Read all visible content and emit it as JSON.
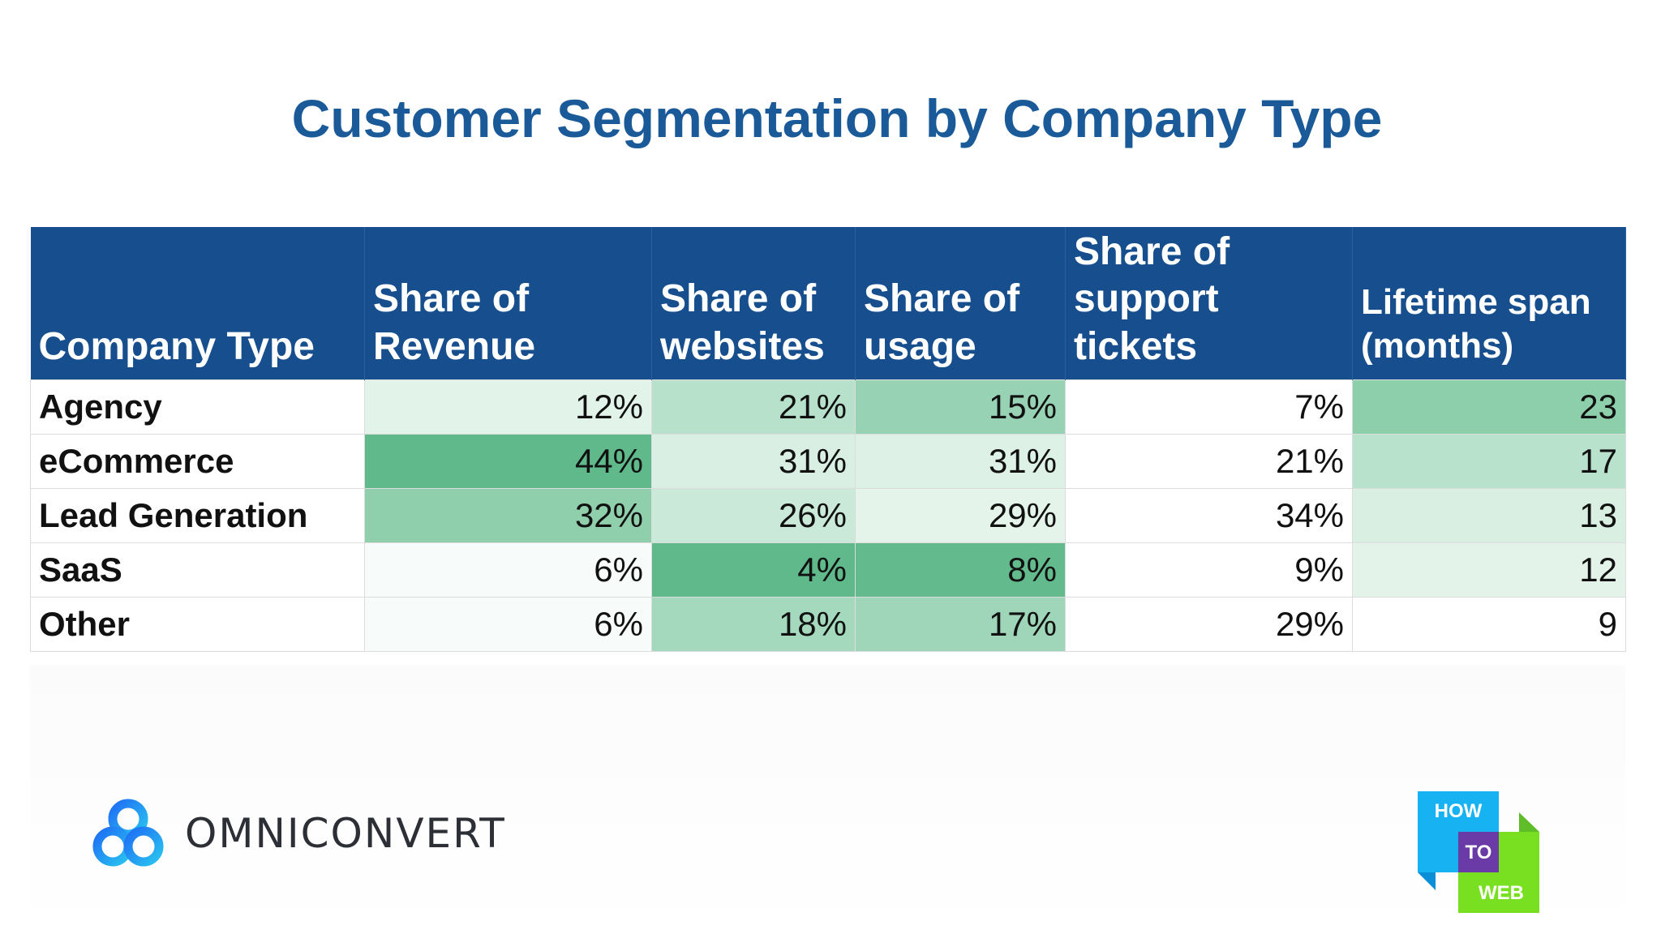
{
  "title": "Customer Segmentation by Company Type",
  "chart_data": {
    "type": "table",
    "columns": [
      "Company Type",
      "Share of Revenue",
      "Share of websites",
      "Share of usage",
      "Share of support tickets",
      "Lifetime span (months)"
    ],
    "rows": [
      {
        "label": "Agency",
        "values": [
          "12%",
          "21%",
          "15%",
          "7%",
          "23"
        ]
      },
      {
        "label": "eCommerce",
        "values": [
          "44%",
          "31%",
          "31%",
          "21%",
          "17"
        ]
      },
      {
        "label": "Lead Generation",
        "values": [
          "32%",
          "26%",
          "29%",
          "34%",
          "13"
        ]
      },
      {
        "label": "SaaS",
        "values": [
          "6%",
          "4%",
          "8%",
          "9%",
          "12"
        ]
      },
      {
        "label": "Other",
        "values": [
          "6%",
          "18%",
          "17%",
          "29%",
          "9"
        ]
      }
    ],
    "cell_colors": [
      [
        "#e2f3ea",
        "#b7e1cb",
        "#98d2b4",
        "#ffffff",
        "#8dcfab"
      ],
      [
        "#5fb98b",
        "#daefe4",
        "#ddf1e6",
        "#ffffff",
        "#b9e2cc"
      ],
      [
        "#8fcfac",
        "#cbe9d9",
        "#e4f4eb",
        "#ffffff",
        "#d8efe2"
      ],
      [
        "#f7fbf9",
        "#5fb98b",
        "#63bb8d",
        "#ffffff",
        "#e3f3ea"
      ],
      [
        "#f7fbf9",
        "#a4d9be",
        "#9fd5b9",
        "#ffffff",
        "#ffffff"
      ]
    ]
  },
  "header_color": "#174f8e",
  "title_color": "#1a5a99",
  "footer": {
    "brand": "OMNICONVERT",
    "htw": [
      "HOW",
      "TO",
      "WEB"
    ]
  }
}
